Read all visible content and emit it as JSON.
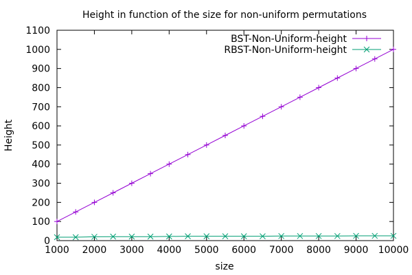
{
  "chart_data": {
    "type": "line",
    "title": "Height in function of the size for non-uniform permutations",
    "xlabel": "size",
    "ylabel": "Height",
    "xlim": [
      1000,
      10000
    ],
    "ylim": [
      0,
      1100
    ],
    "xticks": [
      "1000",
      "2000",
      "3000",
      "4000",
      "5000",
      "6000",
      "7000",
      "8000",
      "9000",
      "10000"
    ],
    "yticks": [
      "0",
      "100",
      "200",
      "300",
      "400",
      "500",
      "600",
      "700",
      "800",
      "900",
      "1000",
      "1100"
    ],
    "grid": false,
    "legend_position": "top-right",
    "x": [
      1000,
      1500,
      2000,
      2500,
      3000,
      3500,
      4000,
      4500,
      5000,
      5500,
      6000,
      6500,
      7000,
      7500,
      8000,
      8500,
      9000,
      9500,
      10000
    ],
    "series": [
      {
        "name": "BST-Non-Uniform-height",
        "color": "#9400d3",
        "marker": "plus",
        "values": [
          100,
          150,
          200,
          250,
          300,
          350,
          400,
          450,
          500,
          550,
          600,
          650,
          700,
          750,
          800,
          850,
          900,
          950,
          1000
        ]
      },
      {
        "name": "RBST-Non-Uniform-height",
        "color": "#009e73",
        "marker": "cross",
        "values": [
          18,
          18,
          20,
          21,
          21,
          21,
          22,
          23,
          23,
          23,
          23,
          23,
          24,
          24,
          24,
          24,
          25,
          25,
          25
        ]
      }
    ]
  }
}
